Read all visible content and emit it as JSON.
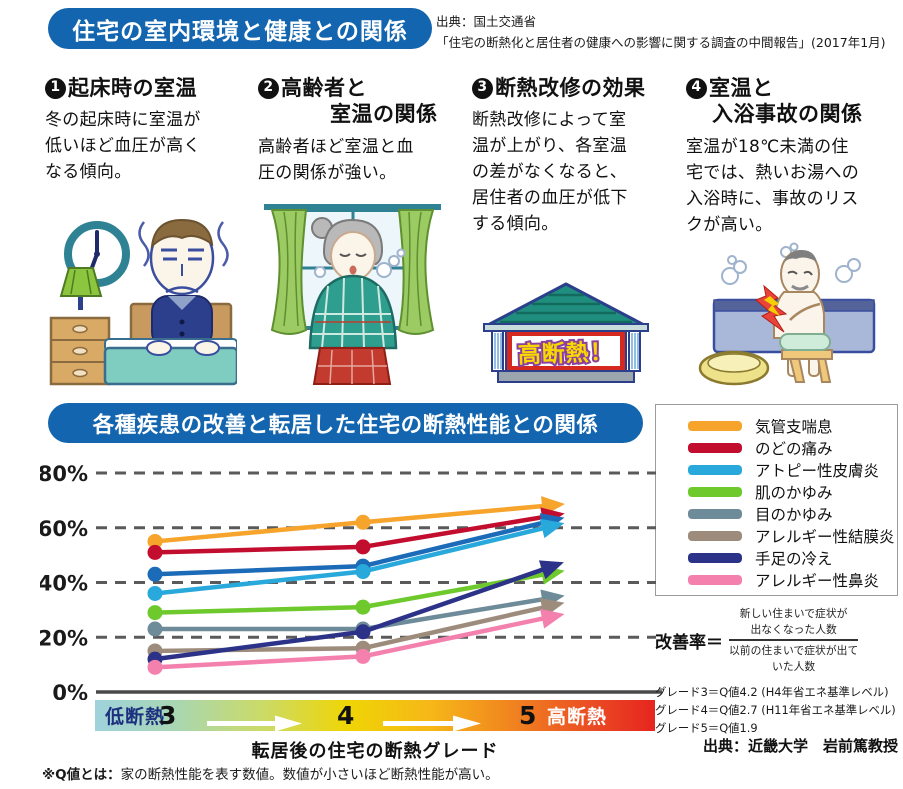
{
  "header": {
    "title": "住宅の室内環境と健康との関係",
    "source_line1": "出典：国土交通省",
    "source_line2": "「住宅の断熱化と居住者の健康への影響に関する調査の中間報告」(2017年1月)"
  },
  "sections": [
    {
      "num": "1",
      "title": "起床時の室温",
      "title2": "",
      "body": "冬の起床時に室温が低いほど血圧が高くなる傾向。"
    },
    {
      "num": "2",
      "title": "高齢者と",
      "title2": "室温の関係",
      "body": "高齢者ほど室温と血圧の関係が強い。"
    },
    {
      "num": "3",
      "title": "断熱改修の効果",
      "title2": "",
      "body": "断熱改修によって室温が上がり、各室温の差がなくなると、居住者の血圧が低下する傾向。"
    },
    {
      "num": "4",
      "title": "室温と",
      "title2": "入浴事故の関係",
      "body": "室温が18℃未満の住宅では、熱いお湯への入浴時に、事故のリスクが高い。"
    }
  ],
  "illustrations": {
    "house_sign": "高断熱！"
  },
  "chart_section": {
    "banner": "各種疾患の改善と転居した住宅の断熱性能との関係",
    "xaxis_caption": "転居後の住宅の断熱グレード",
    "bar": {
      "left_label": "低断熱",
      "right_label": "高断熱",
      "grades": [
        "3",
        "4",
        "5"
      ]
    },
    "formula": {
      "lhs": "改善率＝",
      "numerator_line1": "新しい住まいで症状が",
      "numerator_line2": "出なくなった人数",
      "denominator_line1": "以前の住まいで症状が出て",
      "denominator_line2": "いた人数"
    },
    "grade_notes": [
      "グレード3＝Q値4.2 (H4年省エネ基準レベル)",
      "グレード4＝Q値2.7 (H11年省エネ基準レベル)",
      "グレード5＝Q値1.9"
    ],
    "credit": "出典：近畿大学　岩前篤教授"
  },
  "footnote": {
    "bold": "※Q値とは：",
    "rest": "家の断熱性能を表す数値。数値が小さいほど断熱性能が高い。"
  },
  "chart_data": {
    "type": "line",
    "title": "各種疾患の改善と転居した住宅の断熱性能との関係",
    "categories": [
      "3",
      "4",
      "5"
    ],
    "xlabel": "転居後の住宅の断熱グレード",
    "ylabel": "改善率",
    "ylim": [
      0,
      80
    ],
    "grid": "horizontal-dashed",
    "legend_position": "right-top-box",
    "yticks": [
      {
        "value": 80,
        "label": "80%"
      },
      {
        "value": 60,
        "label": "60%"
      },
      {
        "value": 40,
        "label": "40%"
      },
      {
        "value": 20,
        "label": "20%"
      },
      {
        "value": 0,
        "label": "0%"
      }
    ],
    "series": [
      {
        "name": "気管支喘息",
        "color": "#F6A42B",
        "values": [
          55,
          62,
          68
        ]
      },
      {
        "name": "のどの痛み",
        "color": "#C20D2F",
        "values": [
          51,
          53,
          64
        ]
      },
      {
        "name": "(no legend entry)",
        "color": "#1C6BB8",
        "values": [
          43,
          46,
          62
        ]
      },
      {
        "name": "アトピー性皮膚炎",
        "color": "#29A8DC",
        "values": [
          36,
          44,
          60
        ]
      },
      {
        "name": "肌のかゆみ",
        "color": "#6EC92C",
        "values": [
          29,
          31,
          43
        ]
      },
      {
        "name": "目のかゆみ",
        "color": "#6D8B98",
        "values": [
          23,
          23,
          34
        ]
      },
      {
        "name": "アレルギー性結膜炎",
        "color": "#9D8C7C",
        "values": [
          15,
          16,
          31
        ]
      },
      {
        "name": "手足の冷え",
        "color": "#2C3288",
        "values": [
          12,
          22,
          45
        ]
      },
      {
        "name": "アレルギー性鼻炎",
        "color": "#F480AE",
        "values": [
          9,
          13,
          27
        ]
      }
    ],
    "legend": [
      {
        "label": "気管支喘息",
        "color": "#F6A42B"
      },
      {
        "label": "のどの痛み",
        "color": "#C20D2F"
      },
      {
        "label": "アトピー性皮膚炎",
        "color": "#29A8DC"
      },
      {
        "label": "肌のかゆみ",
        "color": "#6EC92C"
      },
      {
        "label": "目のかゆみ",
        "color": "#6D8B98"
      },
      {
        "label": "アレルギー性結膜炎",
        "color": "#9D8C7C"
      },
      {
        "label": "手足の冷え",
        "color": "#2C3288"
      },
      {
        "label": "アレルギー性鼻炎",
        "color": "#F480AE"
      }
    ]
  }
}
